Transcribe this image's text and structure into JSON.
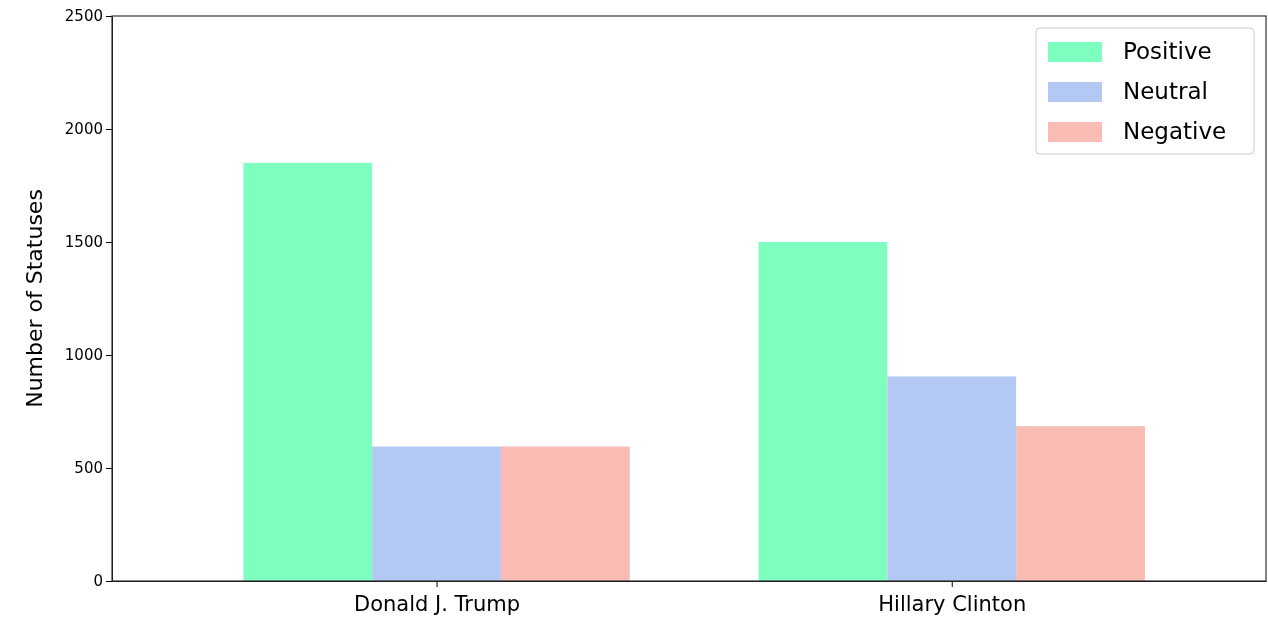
{
  "chart_data": {
    "type": "bar",
    "ylabel": "Number of Statuses",
    "categories": [
      "Donald J. Trump",
      "Hillary Clinton"
    ],
    "series": [
      {
        "name": "Positive",
        "color": "#7fffbf",
        "values": [
          1850,
          1500
        ]
      },
      {
        "name": "Neutral",
        "color": "#b3c9f3",
        "values": [
          595,
          905
        ]
      },
      {
        "name": "Negative",
        "color": "#f9bcb4",
        "values": [
          595,
          685
        ]
      }
    ],
    "ylim": [
      0,
      2500
    ],
    "yticks": [
      0,
      500,
      1000,
      1500,
      2000,
      2500
    ],
    "grid": false,
    "legend": "top right"
  }
}
